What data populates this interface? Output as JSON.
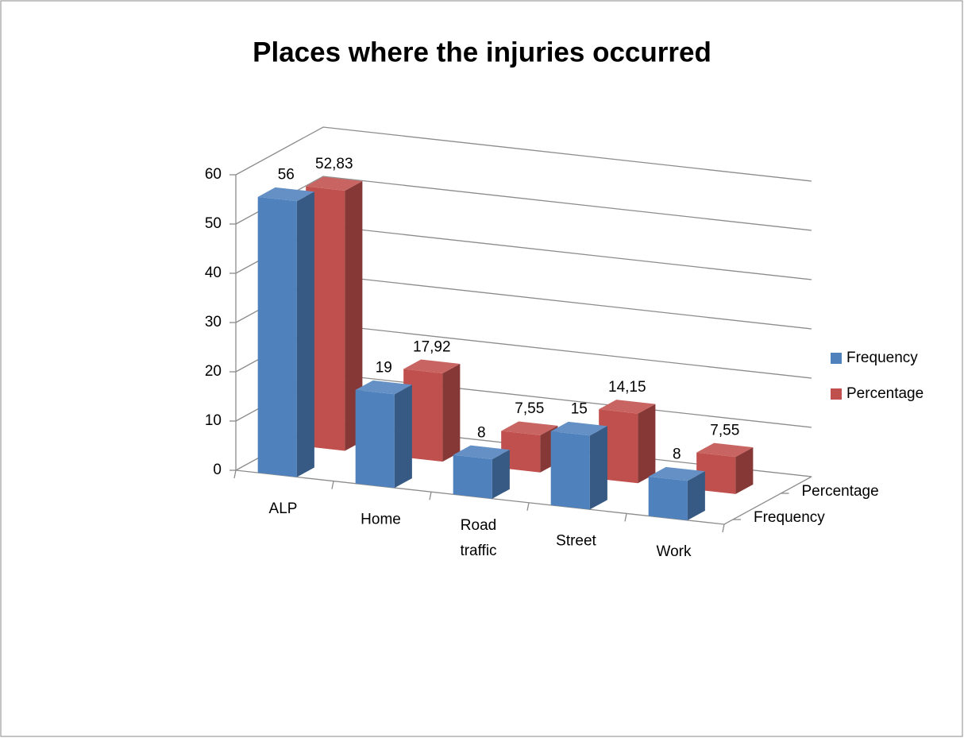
{
  "chart_data": {
    "type": "bar3d",
    "title": "Places where the injuries occurred",
    "categories": [
      "ALP",
      "Home",
      "Road traffic",
      "Street",
      "Work"
    ],
    "series": [
      {
        "name": "Frequency",
        "color": "#4f81bd",
        "values": [
          56,
          19,
          8,
          15,
          8
        ]
      },
      {
        "name": "Percentage",
        "color": "#c0504d",
        "values": [
          52.83,
          17.92,
          7.55,
          14.15,
          7.55
        ],
        "value_labels": [
          "52,83",
          "17,92",
          "7,55",
          "14,15",
          "7,55"
        ]
      }
    ],
    "ylim": [
      0,
      60
    ],
    "yticks": [
      0,
      10,
      20,
      30,
      40,
      50,
      60
    ],
    "grid": true,
    "legend": "right"
  }
}
